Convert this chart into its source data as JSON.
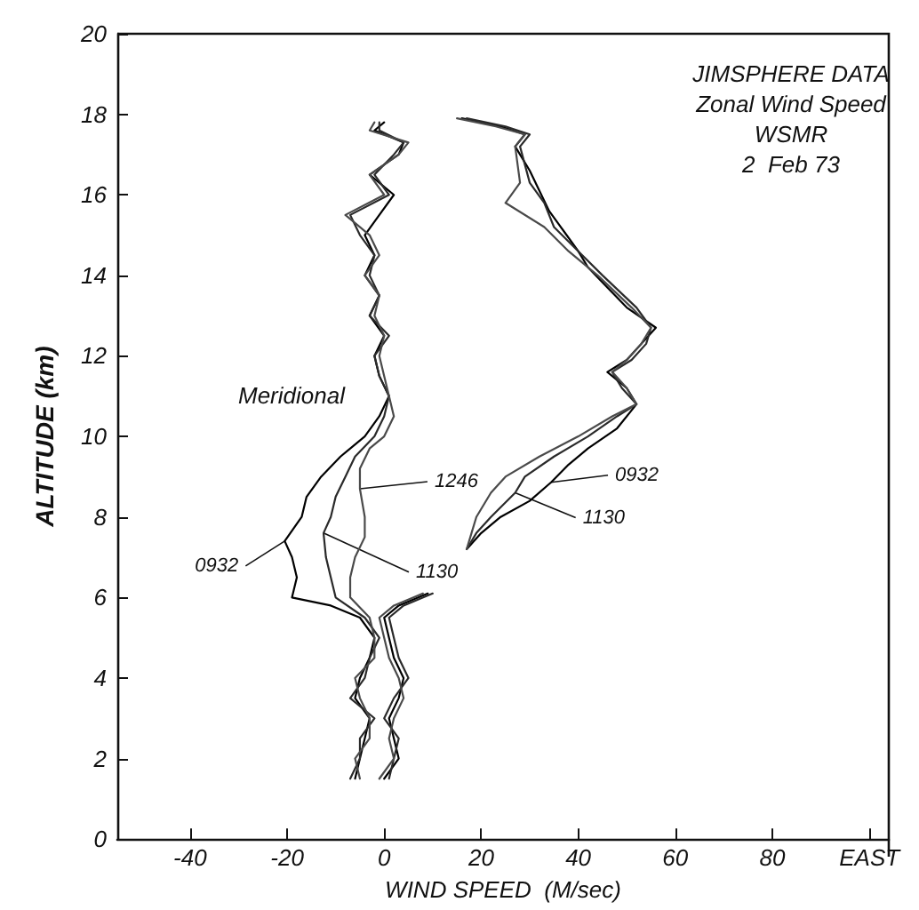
{
  "chart_data": {
    "type": "line",
    "title": "JIMSPHERE DATA",
    "subtitle": "Zonal Wind Speed\nWSMR\n2  Feb 73",
    "xlabel": "WIND SPEED  (M/sec)",
    "ylabel": "ALTITUDE (km)",
    "xlim": [
      -55,
      104
    ],
    "ylim": [
      0,
      20
    ],
    "xticks": [
      -40,
      -20,
      0,
      20,
      40,
      60,
      80,
      {
        "value": 100,
        "label": "EAST"
      }
    ],
    "yticks": [
      0,
      2,
      4,
      6,
      8,
      10,
      12,
      14,
      16,
      18,
      20
    ],
    "marker": "none",
    "line_style": "solid",
    "series": [
      {
        "color": "#000000",
        "x": [
          -6,
          -5,
          -4,
          -3,
          -6,
          -5,
          -3,
          -2,
          -5,
          -11,
          -19,
          -18,
          -19,
          -20.5,
          -17,
          -16,
          -13,
          -9,
          -4,
          -1,
          1,
          -1,
          -2,
          0,
          -3,
          -1,
          -4,
          -2,
          -4,
          -1,
          2,
          -3,
          3,
          4,
          -2,
          0
        ],
        "values": [
          1.5,
          2,
          2.5,
          3,
          3.5,
          4,
          4.5,
          5,
          5.5,
          5.8,
          6,
          6.5,
          7,
          7.4,
          8,
          8.5,
          9,
          9.5,
          10,
          10.5,
          11,
          11.5,
          12,
          12.5,
          13,
          13.5,
          14,
          14.5,
          15,
          15.5,
          16,
          16.5,
          17,
          17.3,
          17.6,
          17.8
        ]
      },
      {
        "color": "#2a2a2a",
        "x": [
          -7,
          -5,
          -5,
          -2,
          -7,
          -4,
          -3,
          -1,
          -4,
          -10,
          -11,
          -12,
          -12.5,
          -11,
          -10,
          -8,
          -6,
          -2,
          0,
          1,
          -1,
          -2,
          1,
          -3,
          -1,
          -3,
          -2,
          -5,
          -7,
          1,
          -2,
          2,
          4,
          -1,
          -1
        ],
        "values": [
          1.5,
          2,
          2.5,
          3,
          3.5,
          4,
          4.5,
          5,
          5.5,
          6,
          6.5,
          7,
          7.6,
          8,
          8.5,
          9,
          9.5,
          10,
          10.5,
          11,
          11.5,
          12,
          12.5,
          13,
          13.5,
          14,
          14.5,
          15,
          15.5,
          16,
          16.5,
          17,
          17.3,
          17.6,
          17.8
        ]
      },
      {
        "color": "#4a4a4a",
        "x": [
          -5,
          -6,
          -3,
          -3,
          -5,
          -6,
          -2,
          -2,
          -3,
          -7,
          -7,
          -6,
          -4,
          -4,
          -5,
          -5,
          -3,
          0,
          2,
          1,
          0,
          -1,
          0,
          -2,
          -1,
          -4,
          -1,
          -3,
          -8,
          0,
          -3,
          3,
          5,
          -3,
          -2
        ],
        "values": [
          1.5,
          2,
          2.5,
          3,
          3.5,
          4,
          4.5,
          5,
          5.5,
          6,
          6.5,
          7,
          7.5,
          8,
          8.7,
          9.2,
          9.7,
          10,
          10.5,
          11,
          11.5,
          12,
          12.5,
          13,
          13.5,
          14,
          14.5,
          15,
          15.5,
          16,
          16.5,
          17,
          17.3,
          17.6,
          17.8
        ]
      },
      {
        "color": "#000000",
        "x": [
          0,
          3,
          2,
          1,
          3,
          4,
          2,
          1,
          0,
          3,
          9,
          null,
          17,
          20,
          24,
          30,
          34.4,
          38,
          42,
          48,
          52,
          50,
          46,
          50,
          53,
          56,
          50,
          46,
          42,
          40,
          37,
          34,
          32,
          30,
          27,
          29,
          24,
          16
        ],
        "values": [
          1.5,
          2,
          2.5,
          3,
          3.5,
          4,
          4.5,
          5,
          5.5,
          5.8,
          6.1,
          null,
          7.2,
          7.6,
          8,
          8.4,
          8.86,
          9.3,
          9.7,
          10.2,
          10.8,
          11.2,
          11.6,
          11.9,
          12.3,
          12.7,
          13.2,
          13.7,
          14.2,
          14.6,
          15.1,
          15.6,
          16.1,
          16.6,
          17.2,
          17.5,
          17.7,
          17.9
        ]
      },
      {
        "color": "#2a2a2a",
        "x": [
          1,
          2,
          3,
          0,
          2,
          5,
          3,
          2,
          1,
          4,
          10,
          null,
          17,
          19,
          22,
          27,
          29,
          35,
          42,
          48,
          52,
          49,
          47,
          51,
          54,
          55,
          52,
          45,
          40,
          35,
          33,
          30,
          28,
          30,
          25,
          17
        ],
        "values": [
          1.5,
          2,
          2.5,
          3,
          3.5,
          4,
          4.5,
          5,
          5.5,
          5.8,
          6.1,
          null,
          7.2,
          7.6,
          8,
          8.6,
          9,
          9.5,
          10,
          10.5,
          10.8,
          11.2,
          11.6,
          11.9,
          12.3,
          12.7,
          13.2,
          14,
          14.6,
          15.2,
          15.8,
          16.3,
          17.2,
          17.5,
          17.7,
          17.9
        ]
      },
      {
        "color": "#4a4a4a",
        "x": [
          -1,
          2,
          1,
          2,
          4,
          3,
          1,
          0,
          -1,
          2,
          8,
          null,
          17,
          18,
          19,
          22,
          25,
          32,
          40,
          47,
          52,
          50,
          47,
          50,
          53,
          55,
          51,
          44,
          38,
          33,
          25,
          28,
          27,
          29,
          23,
          15
        ],
        "values": [
          1.5,
          2,
          2.5,
          3,
          3.5,
          4,
          4.5,
          5,
          5.5,
          5.8,
          6.1,
          null,
          7.2,
          7.6,
          8,
          8.6,
          9,
          9.5,
          10,
          10.5,
          10.8,
          11.2,
          11.6,
          11.9,
          12.3,
          12.7,
          13.2,
          14,
          14.6,
          15.2,
          15.8,
          16.3,
          17.2,
          17.5,
          17.7,
          17.9
        ]
      }
    ],
    "annotations": [
      "Meridional",
      {
        "text": "1246",
        "x": -5,
        "y": 8.7
      },
      {
        "text": "0932",
        "x": -20.5,
        "y": 7.4
      },
      {
        "text": "1130",
        "x": -12.5,
        "y": 7.6
      },
      {
        "text": "0932",
        "x": 34.4,
        "y": 8.86
      },
      {
        "text": "1130",
        "x": 27,
        "y": 8.6
      }
    ]
  }
}
